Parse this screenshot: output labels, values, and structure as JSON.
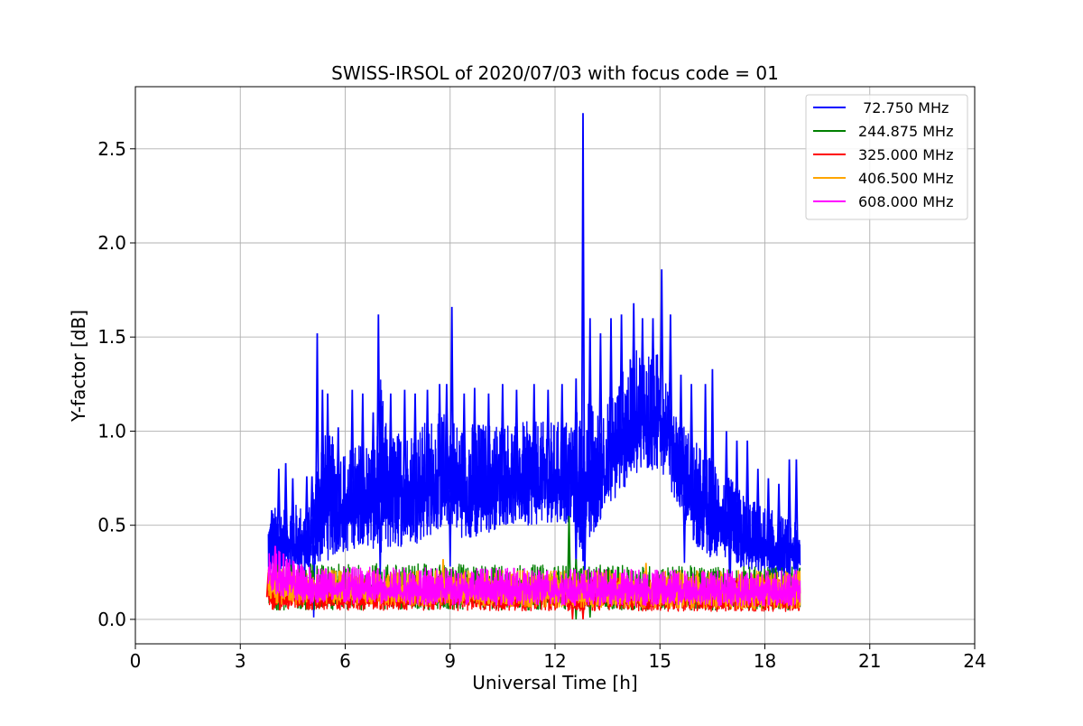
{
  "chart_data": {
    "type": "line",
    "title": "SWISS-IRSOL of 2020/07/03 with focus code = 01",
    "xlabel": "Universal Time [h]",
    "ylabel": "Y-factor [dB]",
    "xlim": [
      0,
      24
    ],
    "ylim": [
      -0.13,
      2.83
    ],
    "xticks": [
      0,
      3,
      6,
      9,
      12,
      15,
      18,
      21,
      24
    ],
    "xtick_labels": [
      "0",
      "3",
      "6",
      "9",
      "12",
      "15",
      "18",
      "21",
      "24"
    ],
    "yticks": [
      0.0,
      0.5,
      1.0,
      1.5,
      2.0,
      2.5
    ],
    "ytick_labels": [
      "0.0",
      "0.5",
      "1.0",
      "1.5",
      "2.0",
      "2.5"
    ],
    "grid": true,
    "legend_position": "top-right",
    "series": [
      {
        "name": " 72.750 MHz",
        "color": "#0000ff",
        "style": "noisy-band",
        "upper": [
          [
            3.8,
            0.55
          ],
          [
            4.0,
            0.6
          ],
          [
            4.5,
            0.62
          ],
          [
            5.0,
            0.6
          ],
          [
            5.3,
            1.0
          ],
          [
            5.6,
            0.98
          ],
          [
            6.0,
            0.9
          ],
          [
            6.5,
            0.95
          ],
          [
            6.9,
            0.95
          ],
          [
            7.0,
            1.3
          ],
          [
            7.2,
            1.0
          ],
          [
            7.6,
            1.0
          ],
          [
            8.0,
            1.02
          ],
          [
            8.5,
            1.08
          ],
          [
            9.0,
            1.12
          ],
          [
            9.3,
            1.02
          ],
          [
            9.6,
            1.05
          ],
          [
            10.0,
            1.05
          ],
          [
            10.5,
            1.06
          ],
          [
            11.0,
            1.05
          ],
          [
            11.5,
            1.05
          ],
          [
            12.0,
            1.05
          ],
          [
            12.5,
            1.08
          ],
          [
            12.9,
            1.2
          ],
          [
            13.2,
            1.1
          ],
          [
            13.6,
            1.2
          ],
          [
            14.0,
            1.35
          ],
          [
            14.4,
            1.45
          ],
          [
            14.8,
            1.45
          ],
          [
            15.2,
            1.35
          ],
          [
            15.5,
            1.1
          ],
          [
            16.0,
            0.95
          ],
          [
            16.5,
            0.85
          ],
          [
            17.0,
            0.75
          ],
          [
            17.5,
            0.65
          ],
          [
            18.0,
            0.6
          ],
          [
            18.5,
            0.55
          ],
          [
            19.0,
            0.5
          ]
        ],
        "lower": [
          [
            3.8,
            0.22
          ],
          [
            4.2,
            0.22
          ],
          [
            5.0,
            0.22
          ],
          [
            5.3,
            0.3
          ],
          [
            6.0,
            0.35
          ],
          [
            6.5,
            0.4
          ],
          [
            7.0,
            0.35
          ],
          [
            7.5,
            0.38
          ],
          [
            8.0,
            0.4
          ],
          [
            8.5,
            0.45
          ],
          [
            9.0,
            0.5
          ],
          [
            9.5,
            0.4
          ],
          [
            10.0,
            0.45
          ],
          [
            10.5,
            0.5
          ],
          [
            11.0,
            0.5
          ],
          [
            11.5,
            0.5
          ],
          [
            12.0,
            0.52
          ],
          [
            12.5,
            0.5
          ],
          [
            12.8,
            0.3
          ],
          [
            13.2,
            0.5
          ],
          [
            13.6,
            0.6
          ],
          [
            14.0,
            0.7
          ],
          [
            14.4,
            0.75
          ],
          [
            15.0,
            0.8
          ],
          [
            15.4,
            0.65
          ],
          [
            15.8,
            0.45
          ],
          [
            16.2,
            0.35
          ],
          [
            16.8,
            0.3
          ],
          [
            17.5,
            0.25
          ],
          [
            18.0,
            0.22
          ],
          [
            18.5,
            0.2
          ],
          [
            19.0,
            0.2
          ]
        ],
        "spikes": [
          [
            3.9,
            0.58
          ],
          [
            4.1,
            0.8
          ],
          [
            4.3,
            0.83
          ],
          [
            4.5,
            0.75
          ],
          [
            4.9,
            0.76
          ],
          [
            5.05,
            0.76
          ],
          [
            5.2,
            1.52
          ],
          [
            5.35,
            1.22
          ],
          [
            5.5,
            1.2
          ],
          [
            5.8,
            1.02
          ],
          [
            6.2,
            1.22
          ],
          [
            6.5,
            1.2
          ],
          [
            6.8,
            1.1
          ],
          [
            6.95,
            1.62
          ],
          [
            7.3,
            1.2
          ],
          [
            7.7,
            1.22
          ],
          [
            8.0,
            1.2
          ],
          [
            8.35,
            1.22
          ],
          [
            8.7,
            1.25
          ],
          [
            8.9,
            1.25
          ],
          [
            9.05,
            1.66
          ],
          [
            9.4,
            1.2
          ],
          [
            9.7,
            1.23
          ],
          [
            10.1,
            1.2
          ],
          [
            10.5,
            1.25
          ],
          [
            10.9,
            1.22
          ],
          [
            11.4,
            1.25
          ],
          [
            11.8,
            1.22
          ],
          [
            12.2,
            1.25
          ],
          [
            12.6,
            1.28
          ],
          [
            12.8,
            2.69
          ],
          [
            13.0,
            1.6
          ],
          [
            13.3,
            1.52
          ],
          [
            13.6,
            1.6
          ],
          [
            13.9,
            1.62
          ],
          [
            14.25,
            1.68
          ],
          [
            14.5,
            1.6
          ],
          [
            14.8,
            1.6
          ],
          [
            15.05,
            1.86
          ],
          [
            15.3,
            1.62
          ],
          [
            15.6,
            1.3
          ],
          [
            15.9,
            1.25
          ],
          [
            16.3,
            1.25
          ],
          [
            16.5,
            1.33
          ],
          [
            16.9,
            1.0
          ],
          [
            17.2,
            0.95
          ],
          [
            17.5,
            0.95
          ],
          [
            17.8,
            0.8
          ],
          [
            18.1,
            0.75
          ],
          [
            18.4,
            0.72
          ],
          [
            18.7,
            0.85
          ],
          [
            18.9,
            0.85
          ]
        ],
        "dips": [
          [
            5.1,
            0.01
          ],
          [
            7.0,
            0.22
          ],
          [
            9.0,
            0.28
          ],
          [
            12.6,
            0.25
          ],
          [
            12.85,
            0.2
          ],
          [
            15.7,
            0.3
          ],
          [
            17.0,
            0.1
          ]
        ]
      },
      {
        "name": "244.875 MHz",
        "color": "#008000",
        "style": "noisy-band",
        "upper": [
          [
            3.8,
            0.3
          ],
          [
            19.0,
            0.28
          ]
        ],
        "lower": [
          [
            3.8,
            0.05
          ],
          [
            19.0,
            0.05
          ]
        ],
        "spikes": [
          [
            12.4,
            0.55
          ],
          [
            12.6,
            0.32
          ]
        ],
        "dips": [
          [
            12.6,
            0.0
          ],
          [
            12.8,
            0.01
          ],
          [
            13.0,
            0.01
          ]
        ]
      },
      {
        "name": "325.000 MHz",
        "color": "#ff0000",
        "style": "noisy-band",
        "upper": [
          [
            3.8,
            0.22
          ],
          [
            19.0,
            0.22
          ]
        ],
        "lower": [
          [
            3.8,
            0.05
          ],
          [
            19.0,
            0.04
          ]
        ],
        "spikes": [
          [
            3.8,
            0.25
          ]
        ],
        "dips": [
          [
            12.5,
            0.0
          ],
          [
            12.8,
            0.0
          ]
        ]
      },
      {
        "name": "406.500 MHz",
        "color": "#ffa500",
        "style": "noisy-band",
        "upper": [
          [
            3.8,
            0.3
          ],
          [
            4.5,
            0.26
          ],
          [
            19.0,
            0.26
          ]
        ],
        "lower": [
          [
            3.8,
            0.08
          ],
          [
            19.0,
            0.05
          ]
        ],
        "spikes": [
          [
            8.8,
            0.32
          ],
          [
            14.6,
            0.3
          ]
        ],
        "dips": []
      },
      {
        "name": "608.000 MHz",
        "color": "#ff00ff",
        "style": "noisy-band",
        "upper": [
          [
            3.8,
            0.38
          ],
          [
            4.2,
            0.36
          ],
          [
            4.6,
            0.3
          ],
          [
            5.0,
            0.28
          ],
          [
            19.0,
            0.26
          ]
        ],
        "lower": [
          [
            3.8,
            0.15
          ],
          [
            4.2,
            0.12
          ],
          [
            5.0,
            0.08
          ],
          [
            19.0,
            0.07
          ]
        ],
        "spikes": [
          [
            4.0,
            0.39
          ]
        ],
        "dips": []
      }
    ]
  }
}
